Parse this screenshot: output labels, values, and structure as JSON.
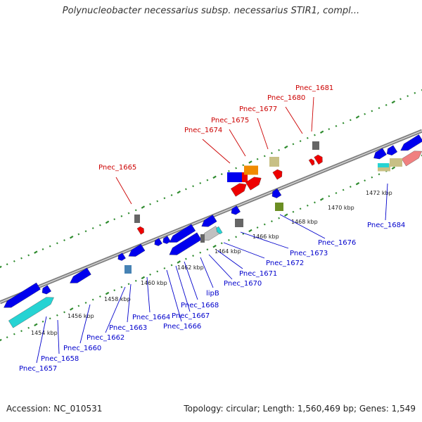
{
  "title": "Polynucleobacter necessarius subsp. necessarius STIR1, compl...",
  "footer": {
    "accession": "Accession: NC_010531",
    "summary": "Topology: circular; Length: 1,560,469 bp; Genes: 1,549"
  },
  "colors": {
    "backbone": "#808080",
    "tick": "#2e8b2e",
    "forward_label": "#cc0000",
    "reverse_label": "#0000cc",
    "gene_blue": "#0000ee",
    "gene_red": "#ee0000",
    "gene_orange": "#f08a00",
    "gene_cyan": "#26d3d3",
    "gene_khaki": "#c8c085",
    "gene_gray": "#666666",
    "gene_olive": "#6b8e23",
    "gene_steel": "#4682b4",
    "gene_pink": "#f08080"
  },
  "kbp_labels": [
    "1454 kbp",
    "1456 kbp",
    "1458 kbp",
    "1460 kbp",
    "1462 kbp",
    "1464 kbp",
    "1466 kbp",
    "1468 kbp",
    "1470 kbp",
    "1472 kbp"
  ],
  "forward_labels": [
    "Pnec_1665",
    "Pnec_1674",
    "Pnec_1675",
    "Pnec_1677",
    "Pnec_1680",
    "Pnec_1681"
  ],
  "reverse_labels": [
    "Pnec_1657",
    "Pnec_1658",
    "Pnec_1660",
    "Pnec_1662",
    "Pnec_1663",
    "Pnec_1664",
    "Pnec_1666",
    "Pnec_1667",
    "Pnec_1668",
    "lipB",
    "Pnec_1670",
    "Pnec_1671",
    "Pnec_1672",
    "Pnec_1673",
    "Pnec_1676",
    "Pnec_1684"
  ]
}
